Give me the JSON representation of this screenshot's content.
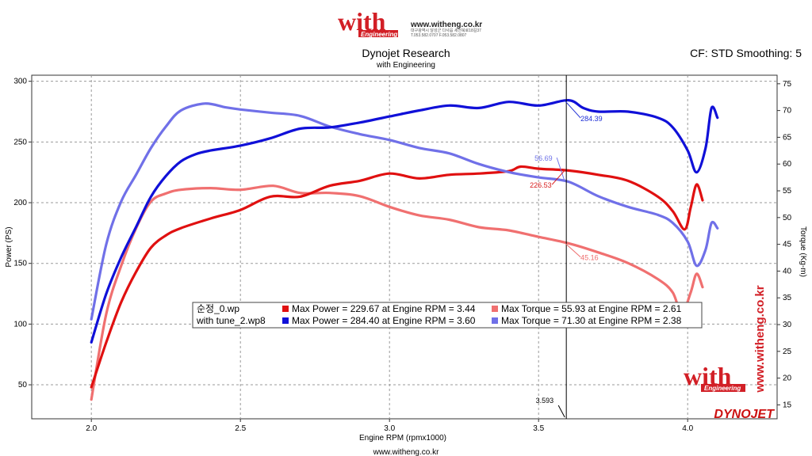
{
  "header": {
    "logo_word": "with",
    "logo_sub": "Engineering",
    "website": "www.witheng.co.kr",
    "address_line": "대구광역시 달성군 다사읍 세천북로18길37",
    "phone_line": "T.053.582.0707 F.053.582.0807",
    "title": "Dynojet Research",
    "subtitle": "with Engineering",
    "settings": "CF: STD Smoothing: 5"
  },
  "footer": {
    "website": "www.witheng.co.kr",
    "brand": "DYNOJET"
  },
  "watermark": {
    "logo_word": "with",
    "logo_sub": "Engineering",
    "vertical_site": "www.witheng.co.kr"
  },
  "cursor": {
    "rpm_label": "3.593",
    "labels": [
      {
        "text": "284.39",
        "color": "#1f2fd6"
      },
      {
        "text": "56.69",
        "color": "#6f73e8"
      },
      {
        "text": "226.53",
        "color": "#d81c1c"
      },
      {
        "text": "45.16",
        "color": "#ee6d6d"
      }
    ]
  },
  "legend": {
    "rows": [
      {
        "file": "순정_0.wp",
        "power_text": "Max Power = 229.67 at Engine RPM = 3.44",
        "power_color": "#e01010",
        "torque_text": "Max Torque = 55.93 at Engine RPM = 2.61",
        "torque_color": "#f07070"
      },
      {
        "file": "with tune_2.wp8",
        "power_text": "Max Power = 284.40 at Engine RPM = 3.60",
        "power_color": "#1010d8",
        "torque_text": "Max Torque = 71.30 at Engine RPM = 2.38",
        "torque_color": "#7070e8"
      }
    ]
  },
  "chart_data": {
    "type": "line",
    "xlabel": "Engine RPM (rpmx1000)",
    "ylabel": "Power (PS)",
    "y2label": "Torque (Kg-m)",
    "xlim": [
      1.8,
      4.3
    ],
    "ylim": [
      22,
      305
    ],
    "y2lim": [
      12.4,
      76.6
    ],
    "x_ticks": [
      "2.0",
      "2.5",
      "3.0",
      "3.5",
      "4.0"
    ],
    "y_ticks": [
      "50",
      "100",
      "150",
      "200",
      "250",
      "300"
    ],
    "y2_ticks": [
      "15",
      "20",
      "25",
      "30",
      "35",
      "40",
      "45",
      "50",
      "55",
      "60",
      "65",
      "70",
      "75"
    ],
    "cursor_x": 3.593,
    "grid": true,
    "series": [
      {
        "name": "with tune_2.wp8",
        "measure": "Power",
        "axis": "left",
        "color": "#1010d8",
        "x": [
          2.0,
          2.05,
          2.1,
          2.15,
          2.2,
          2.25,
          2.3,
          2.35,
          2.4,
          2.5,
          2.6,
          2.7,
          2.8,
          2.9,
          3.0,
          3.1,
          3.2,
          3.3,
          3.4,
          3.5,
          3.6,
          3.65,
          3.7,
          3.8,
          3.9,
          3.95,
          4.0,
          4.03,
          4.06,
          4.08,
          4.1
        ],
        "y": [
          85,
          125,
          155,
          180,
          205,
          222,
          234,
          240,
          243,
          247,
          253,
          261,
          262,
          266,
          271,
          276,
          280,
          278,
          283,
          280,
          284.4,
          278,
          275,
          275,
          270,
          262,
          243,
          225,
          245,
          278,
          270
        ]
      },
      {
        "name": "순정_0.wp",
        "measure": "Power",
        "axis": "left",
        "color": "#e01010",
        "x": [
          2.0,
          2.05,
          2.1,
          2.15,
          2.2,
          2.25,
          2.3,
          2.4,
          2.5,
          2.6,
          2.7,
          2.8,
          2.9,
          3.0,
          3.1,
          3.2,
          3.3,
          3.4,
          3.44,
          3.5,
          3.6,
          3.7,
          3.8,
          3.9,
          3.95,
          3.99,
          4.01,
          4.03,
          4.05
        ],
        "y": [
          48,
          85,
          118,
          143,
          163,
          173,
          179,
          187,
          194,
          205,
          205,
          214,
          218,
          224,
          220,
          223,
          224,
          226,
          229.67,
          228,
          226.5,
          223,
          218,
          205,
          193,
          178,
          196,
          215,
          202
        ]
      },
      {
        "name": "with tune_2.wp8",
        "measure": "Torque",
        "axis": "right",
        "color": "#7070e8",
        "x": [
          2.0,
          2.05,
          2.1,
          2.15,
          2.2,
          2.25,
          2.3,
          2.38,
          2.45,
          2.5,
          2.6,
          2.7,
          2.8,
          2.9,
          3.0,
          3.1,
          3.2,
          3.3,
          3.4,
          3.5,
          3.6,
          3.7,
          3.8,
          3.9,
          3.95,
          4.0,
          4.03,
          4.06,
          4.08,
          4.1
        ],
        "y": [
          31,
          45,
          53,
          58,
          63,
          67,
          70,
          71.3,
          70.6,
          70.2,
          69.6,
          69,
          67,
          65.6,
          64.5,
          63,
          62,
          60,
          58.5,
          57.5,
          56.7,
          54,
          52,
          50.5,
          49,
          45.5,
          41,
          44,
          49,
          48
        ]
      },
      {
        "name": "순정_0.wp",
        "measure": "Torque",
        "axis": "right",
        "color": "#f07070",
        "x": [
          2.0,
          2.05,
          2.1,
          2.15,
          2.2,
          2.25,
          2.3,
          2.4,
          2.5,
          2.61,
          2.7,
          2.8,
          2.9,
          3.0,
          3.1,
          3.2,
          3.3,
          3.4,
          3.5,
          3.6,
          3.7,
          3.8,
          3.9,
          3.95,
          3.98,
          4.01,
          4.03,
          4.05
        ],
        "y": [
          16,
          32,
          41,
          48,
          53,
          54.5,
          55.2,
          55.5,
          55.2,
          55.93,
          54.6,
          54.6,
          54,
          52,
          50.4,
          49.6,
          48.2,
          47.6,
          46.4,
          45.2,
          43.5,
          41.5,
          38.5,
          36,
          32,
          36,
          39.5,
          37
        ]
      }
    ]
  }
}
